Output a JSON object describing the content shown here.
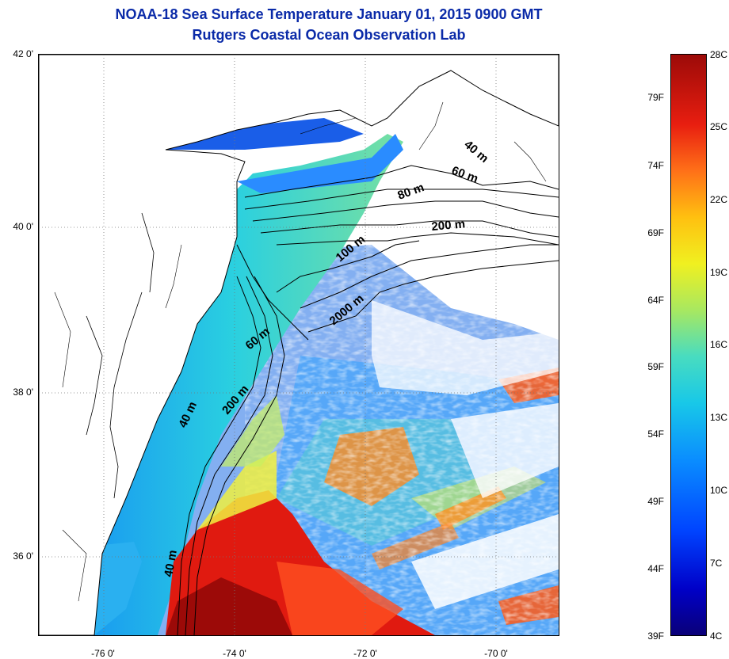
{
  "title": {
    "line1": "NOAA-18 Sea Surface Temperature January 01, 2015 0900 GMT",
    "line2": "Rutgers Coastal Ocean Observation Lab"
  },
  "map": {
    "lat_ticks": [
      "42 0'",
      "40 0'",
      "38 0'",
      "36 0'"
    ],
    "lon_ticks": [
      "-76 0'",
      "-74 0'",
      "-72 0'",
      "-70 0'"
    ],
    "lat_range": [
      35,
      42
    ],
    "lon_range": [
      -77,
      -69
    ],
    "isobath_labels": [
      "40 m",
      "60 m",
      "80 m",
      "200 m",
      "100 m",
      "2000 m",
      "60 m",
      "200 m",
      "40 m",
      "40 m"
    ]
  },
  "colorbar": {
    "fahrenheit_labels": [
      "79F",
      "74F",
      "69F",
      "64F",
      "59F",
      "54F",
      "49F",
      "44F",
      "39F"
    ],
    "celsius_labels": [
      "28C",
      "25C",
      "22C",
      "19C",
      "16C",
      "13C",
      "10C",
      "7C",
      "4C"
    ],
    "range_c": [
      4,
      28
    ],
    "colors": {
      "cold": "#0a0078",
      "mid": "#48dcc0",
      "warm": "#9c0a08"
    }
  }
}
